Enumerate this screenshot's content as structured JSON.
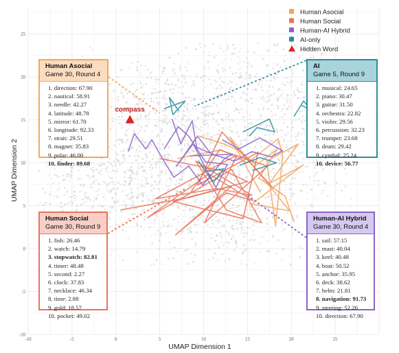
{
  "colors": {
    "human_asocial": "#f2a65e",
    "human_social": "#e8735a",
    "hybrid": "#8c63c9",
    "ai": "#2e8b9a",
    "hidden": "#e02020",
    "background_points": "#cfcfcf"
  },
  "chart_data": {
    "type": "line",
    "xlabel": "UMAP Dimension 1",
    "ylabel": "UMAP Dimension 2",
    "xlim": [
      -10,
      30
    ],
    "ylim": [
      -10,
      28
    ],
    "xticks": [
      -10,
      -5,
      0,
      5,
      10,
      15,
      20,
      25
    ],
    "yticks": [
      -10,
      -5,
      0,
      5,
      10,
      15,
      20,
      25
    ],
    "grid": true,
    "legend_position": "top-right",
    "legend": [
      {
        "label": "Human Asocial",
        "marker": "square",
        "color": "#f2a65e"
      },
      {
        "label": "Human Social",
        "marker": "square",
        "color": "#e8735a"
      },
      {
        "label": "Human-AI Hybrid",
        "marker": "square",
        "color": "#8c63c9"
      },
      {
        "label": "AI-only",
        "marker": "square",
        "color": "#2e8b9a"
      },
      {
        "label": "Hidden Word",
        "marker": "triangle",
        "color": "#e02020"
      }
    ],
    "hidden_word": {
      "label": "compass",
      "x": 1.6,
      "y": 15.0
    },
    "series": [
      {
        "group": "human_social",
        "points": [
          [
            0.5,
            4.5
          ],
          [
            8.5,
            6.0
          ],
          [
            13.2,
            7.3
          ],
          [
            6.8,
            1.6
          ],
          [
            12.6,
            6.5
          ],
          [
            15.6,
            5.6
          ],
          [
            10.6,
            8.7
          ],
          [
            3.6,
            3.6
          ],
          [
            13.2,
            9.2
          ],
          [
            16.6,
            3.0
          ],
          [
            12.6,
            4.5
          ],
          [
            9.1,
            10.2
          ],
          [
            15.5,
            6.2
          ],
          [
            11.5,
            7.0
          ],
          [
            4.5,
            5.8
          ],
          [
            13.8,
            10.9
          ],
          [
            10.1,
            3.0
          ],
          [
            17.3,
            9.6
          ],
          [
            11.8,
            11.5
          ],
          [
            8.5,
            6.5
          ]
        ]
      },
      {
        "group": "human_social",
        "points": [
          [
            5.0,
            10.5
          ],
          [
            12.5,
            9.0
          ],
          [
            15.0,
            7.8
          ],
          [
            6.5,
            5.5
          ],
          [
            14.5,
            3.5
          ],
          [
            16.2,
            11.2
          ],
          [
            9.3,
            7.4
          ],
          [
            12.1,
            13.6
          ],
          [
            17.8,
            7.2
          ]
        ]
      },
      {
        "group": "human_asocial",
        "points": [
          [
            7.0,
            10.5
          ],
          [
            12.0,
            11.5
          ],
          [
            15.0,
            10.0
          ],
          [
            18.5,
            12.8
          ],
          [
            19.0,
            10.8
          ],
          [
            18.2,
            2.6
          ],
          [
            17.2,
            10.2
          ],
          [
            20.8,
            12.2
          ],
          [
            17.5,
            7.6
          ],
          [
            21.3,
            9.7
          ],
          [
            15.5,
            5.2
          ],
          [
            19.8,
            4.4
          ],
          [
            13.0,
            13.0
          ],
          [
            16.5,
            6.5
          ]
        ]
      },
      {
        "group": "human_asocial",
        "points": [
          [
            9.5,
            13.1
          ],
          [
            12.3,
            12.2
          ],
          [
            14.3,
            11.3
          ],
          [
            16.0,
            9.7
          ],
          [
            18.4,
            11.6
          ],
          [
            16.3,
            8.2
          ],
          [
            19.3,
            6.1
          ],
          [
            20.3,
            3.1
          ]
        ]
      },
      {
        "group": "hybrid",
        "points": [
          [
            1.4,
            11.3
          ],
          [
            2.1,
            13.4
          ],
          [
            3.4,
            11.6
          ],
          [
            4.1,
            12.7
          ],
          [
            4.9,
            11.2
          ],
          [
            6.6,
            8.3
          ],
          [
            8.3,
            9.6
          ],
          [
            9.9,
            7.4
          ],
          [
            12.4,
            10.5
          ],
          [
            13.3,
            11.0
          ],
          [
            8.5,
            10.8
          ]
        ]
      },
      {
        "group": "hybrid",
        "points": [
          [
            5.5,
            11.6
          ],
          [
            7.1,
            14.2
          ],
          [
            8.3,
            13.1
          ],
          [
            10.2,
            10.1
          ],
          [
            12.7,
            9.8
          ],
          [
            11.4,
            7.1
          ],
          [
            8.8,
            12.2
          ],
          [
            6.9,
            9.6
          ],
          [
            9.3,
            13.1
          ],
          [
            10.8,
            11.1
          ]
        ]
      },
      {
        "group": "hybrid",
        "points": [
          [
            6.4,
            15.1
          ],
          [
            7.4,
            12.2
          ],
          [
            8.7,
            14.9
          ],
          [
            9.2,
            11.8
          ],
          [
            11.3,
            10.9
          ],
          [
            13.5,
            10.2
          ],
          [
            15.5,
            11.3
          ],
          [
            17.7,
            10.7
          ],
          [
            19.0,
            11.4
          ],
          [
            16.4,
            12.9
          ],
          [
            14.0,
            11.6
          ],
          [
            12.1,
            12.7
          ]
        ]
      },
      {
        "group": "ai",
        "points": [
          [
            5.5,
            16.3
          ],
          [
            7.9,
            17.2
          ],
          [
            6.5,
            15.6
          ],
          [
            6.1,
            17.6
          ],
          [
            7.2,
            16.0
          ]
        ]
      },
      {
        "group": "ai",
        "points": [
          [
            14.5,
            13.6
          ],
          [
            17.5,
            15.1
          ],
          [
            18.1,
            13.6
          ],
          [
            16.1,
            14.1
          ],
          [
            15.2,
            13.1
          ]
        ]
      },
      {
        "group": "ai",
        "points": [
          [
            20.3,
            15.4
          ],
          [
            21.4,
            17.2
          ],
          [
            22.2,
            16.2
          ],
          [
            21.1,
            16.7
          ]
        ]
      },
      {
        "group": "ai",
        "points": [
          [
            9.4,
            10.2
          ],
          [
            11.1,
            7.7
          ],
          [
            12.3,
            9.3
          ],
          [
            10.5,
            9.0
          ]
        ]
      },
      {
        "group": "ai",
        "points": [
          [
            14.1,
            9.7
          ],
          [
            16.4,
            10.6
          ],
          [
            18.3,
            10.0
          ],
          [
            15.6,
            9.1
          ]
        ]
      }
    ],
    "cards": [
      {
        "group": "human_asocial",
        "title": "Human Asocial",
        "subtitle": "Game 30, Round 4",
        "items": [
          "1. direction: 67.90",
          "2. nautical: 58.91",
          "3. needle: 42.27",
          "4. latitude: 48.78",
          "5. mirror: 61.70",
          "6. longitude: 92.33",
          "7. strait: 29.51",
          "8. magnet: 35.83",
          "9. polar: 46.00",
          "10. finder: 89.68"
        ],
        "highlight": 9
      },
      {
        "group": "ai",
        "title": "AI",
        "subtitle": "Game 5, Round 9",
        "items": [
          "1. musical: 24.65",
          "2. piano: 30.47",
          "3. guitar: 31.50",
          "4. orchestra: 22.82",
          "5. violin: 29.56",
          "6. percussion: 32.23",
          "7. trumpet: 23.68",
          "8. drum: 29.42",
          "9. cymbal: 25.24",
          "10. device: 56.77"
        ],
        "highlight": 9
      },
      {
        "group": "human_social",
        "title": "Human Social",
        "subtitle": "Game 30, Round 9",
        "items": [
          "1. fish: 26.46",
          "2. watch: 14.79",
          "3. stopwatch: 82.81",
          "4. timer: 48.48",
          "5. second: 2.27",
          "6. clock: 37.83",
          "7. necklace: 46.34",
          "8. time: 2.88",
          "9. gold: 18.57",
          "10. pocket: 49.02"
        ],
        "highlight": 2
      },
      {
        "group": "hybrid",
        "title": "Human-AI Hybrid",
        "subtitle": "Game 30, Round 4",
        "items": [
          "1. sail: 57.15",
          "2. mast: 40.04",
          "3. keel: 40.48",
          "4. boat: 50.52",
          "5. anchor: 35.95",
          "6. deck: 38.62",
          "7. helm: 21.81",
          "8. navigation: 91.73",
          "9. steering: 52.26",
          "10. direction: 67.90"
        ],
        "highlight": 7
      }
    ]
  }
}
